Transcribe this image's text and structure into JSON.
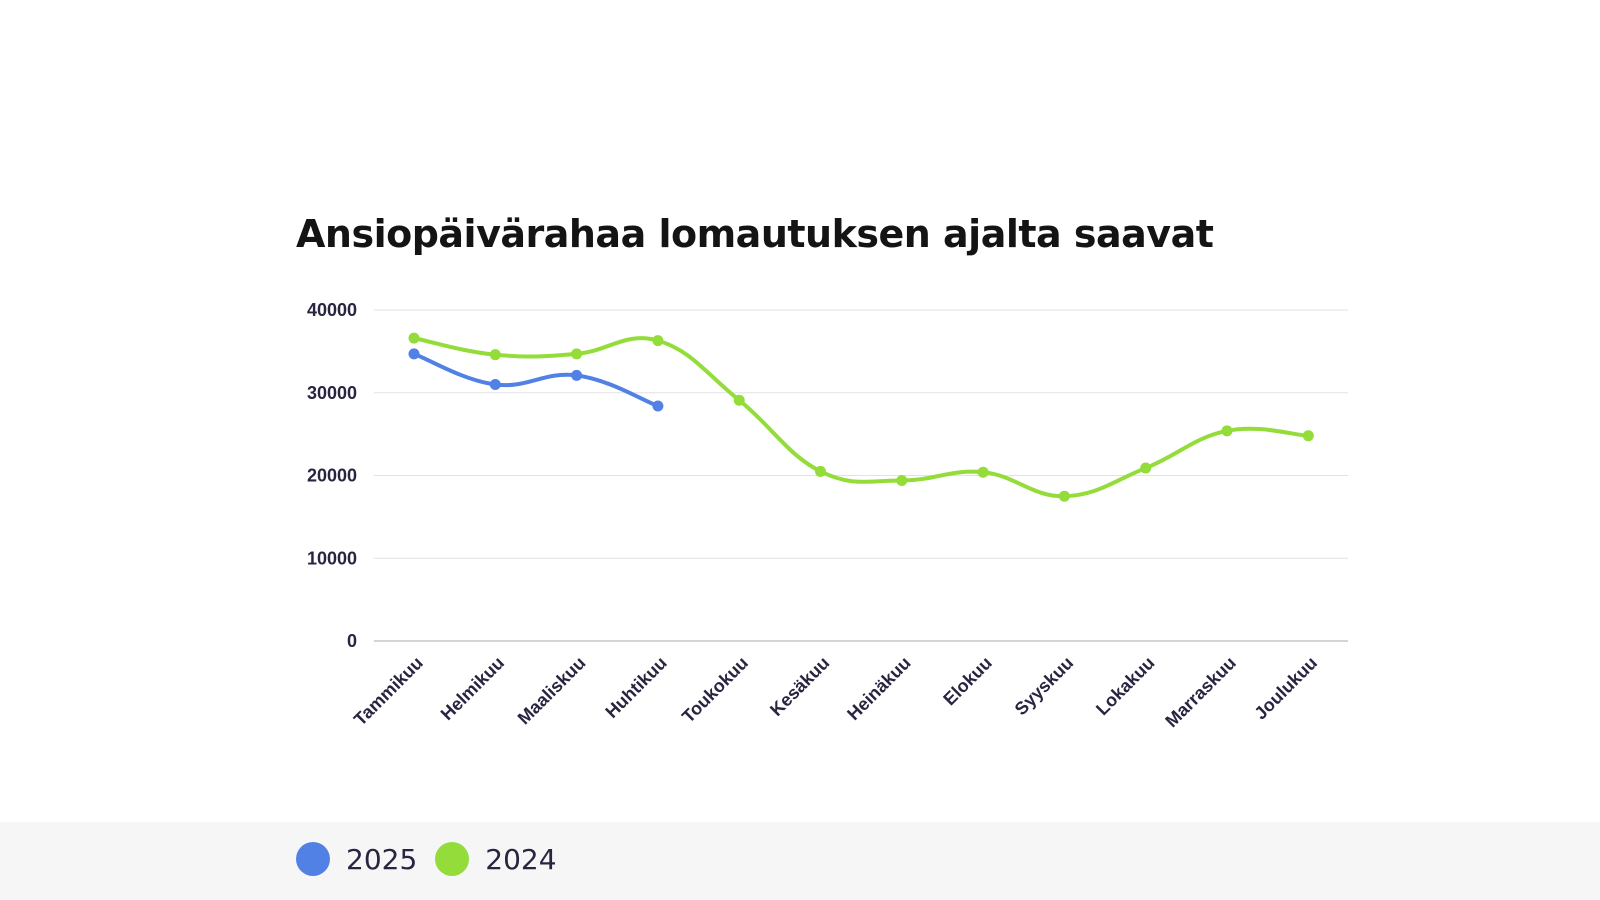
{
  "chart_data": {
    "type": "line",
    "title": "Ansiopäivärahaa lomautuksen ajalta saavat",
    "categories": [
      "Tammikuu",
      "Helmikuu",
      "Maaliskuu",
      "Huhtikuu",
      "Toukokuu",
      "Kesäkuu",
      "Heinäkuu",
      "Elokuu",
      "Syyskuu",
      "Lokakuu",
      "Marraskuu",
      "Joulukuu"
    ],
    "ylim": [
      0,
      40000
    ],
    "yticks": [
      "0",
      "10000",
      "20000",
      "30000",
      "40000"
    ],
    "grid": true,
    "legend_position": "bottom",
    "series": [
      {
        "name": "2025",
        "color": "#5281e6",
        "values": [
          34700,
          31000,
          32100,
          28400,
          null,
          null,
          null,
          null,
          null,
          null,
          null,
          null
        ]
      },
      {
        "name": "2024",
        "color": "#93dc3a",
        "values": [
          36600,
          34600,
          34700,
          36300,
          29100,
          20500,
          19400,
          20400,
          17500,
          20900,
          25400,
          24800
        ]
      }
    ]
  }
}
